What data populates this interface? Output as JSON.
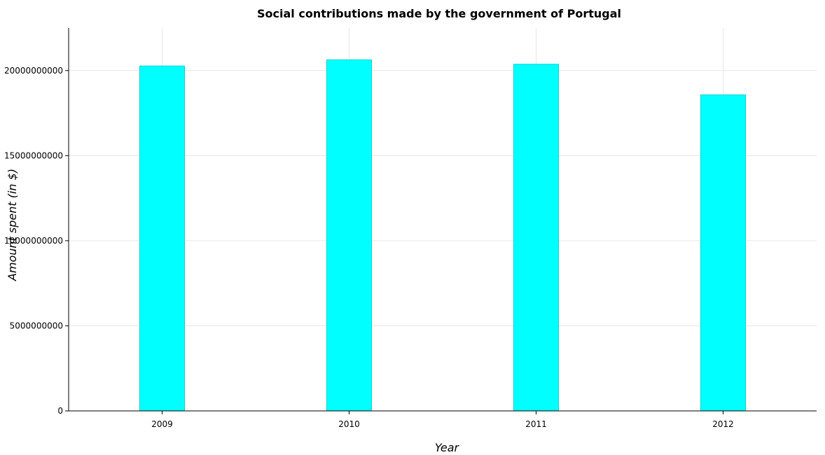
{
  "chart_data": {
    "type": "bar",
    "title": "Social contributions made by the government of Portugal",
    "xlabel": "Year",
    "ylabel": "Amount spent (in $)",
    "categories": [
      "2009",
      "2010",
      "2011",
      "2012"
    ],
    "values": [
      20270000000,
      20630000000,
      20370000000,
      18570000000
    ],
    "ylim": [
      0,
      22500000000
    ],
    "yticks": [
      0,
      5000000000,
      10000000000,
      15000000000,
      20000000000
    ],
    "ytick_labels": [
      "0",
      "5000000000",
      "10000000000",
      "15000000000",
      "20000000000"
    ],
    "grid": true,
    "bar_color": "#00ffff"
  }
}
